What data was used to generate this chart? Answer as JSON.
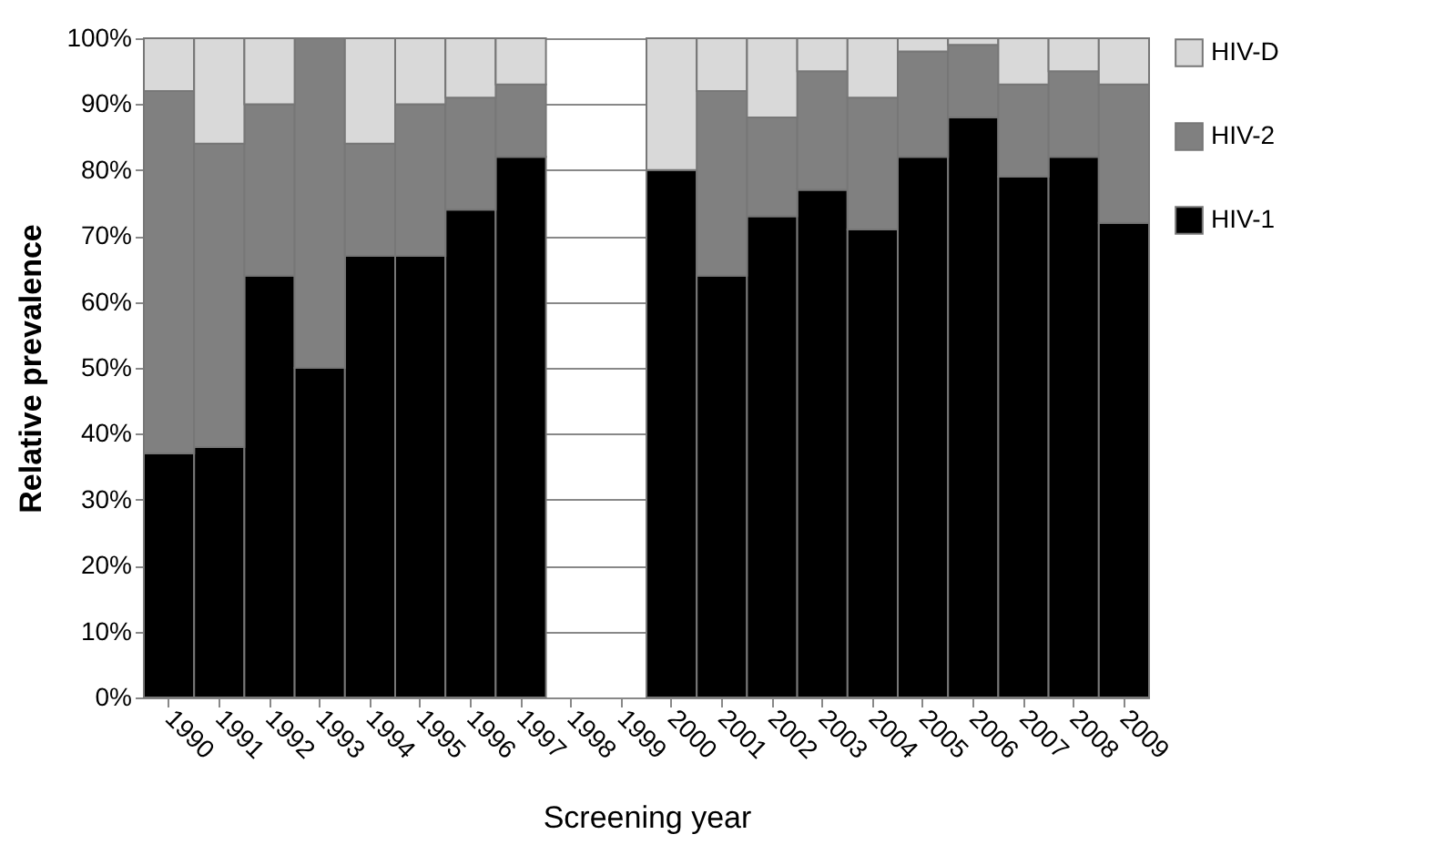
{
  "chart_data": {
    "type": "bar",
    "stacked": true,
    "xlabel": "Screening year",
    "ylabel": "Relative prevalence",
    "categories": [
      "1990",
      "1991",
      "1992",
      "1993",
      "1994",
      "1995",
      "1996",
      "1997",
      "1998",
      "1999",
      "2000",
      "2001",
      "2002",
      "2003",
      "2004",
      "2005",
      "2006",
      "2007",
      "2008",
      "2009"
    ],
    "series": [
      {
        "name": "HIV-1",
        "color": "#000000",
        "values": [
          37,
          38,
          64,
          50,
          67,
          67,
          74,
          82,
          null,
          null,
          80,
          64,
          73,
          77,
          71,
          82,
          88,
          79,
          82,
          72
        ]
      },
      {
        "name": "HIV-2",
        "color": "#808080",
        "values": [
          55,
          46,
          26,
          50,
          17,
          23,
          17,
          11,
          null,
          null,
          null,
          28,
          15,
          18,
          20,
          16,
          11,
          14,
          13,
          21
        ]
      },
      {
        "name": "HIV-D",
        "color": "#d9d9d9",
        "values": [
          8,
          16,
          10,
          null,
          16,
          10,
          9,
          7,
          null,
          null,
          20,
          8,
          12,
          5,
          9,
          2,
          1,
          7,
          5,
          7
        ]
      }
    ],
    "ylim": [
      0,
      100
    ],
    "yticks": [
      {
        "value": 0,
        "label": "0%"
      },
      {
        "value": 10,
        "label": "10%"
      },
      {
        "value": 20,
        "label": "20%"
      },
      {
        "value": 30,
        "label": "30%"
      },
      {
        "value": 40,
        "label": "40%"
      },
      {
        "value": 50,
        "label": "50%"
      },
      {
        "value": 60,
        "label": "60%"
      },
      {
        "value": 70,
        "label": "70%"
      },
      {
        "value": 80,
        "label": "80%"
      },
      {
        "value": 90,
        "label": "90%"
      },
      {
        "value": 100,
        "label": "100%"
      }
    ],
    "grid": "y",
    "legend": "right"
  }
}
